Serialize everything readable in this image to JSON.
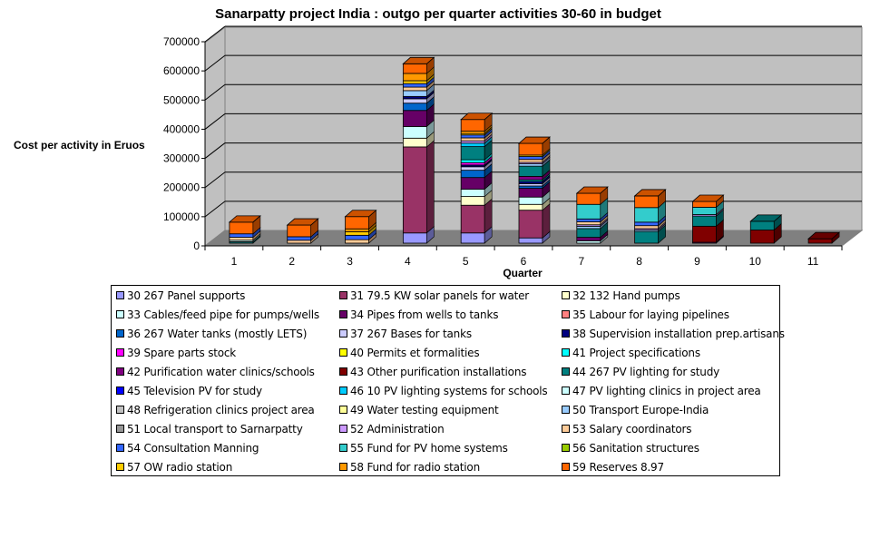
{
  "chart_data": {
    "type": "bar",
    "stacked": true,
    "three_d": true,
    "title": "Sanarpatty project India : outgo per quarter activities 30-60 in budget",
    "xlabel": "Quarter",
    "ylabel": "Cost per activity in Eruos",
    "ylim": [
      0,
      700000
    ],
    "yticks": [
      "0",
      "100000",
      "200000",
      "300000",
      "400000",
      "500000",
      "600000",
      "700000"
    ],
    "ytick_values": [
      0,
      100000,
      200000,
      300000,
      400000,
      500000,
      600000,
      700000
    ],
    "categories": [
      "1",
      "2",
      "3",
      "4",
      "5",
      "6",
      "7",
      "8",
      "9",
      "10",
      "11"
    ],
    "grid": true,
    "legend_position": "bottom",
    "series": [
      {
        "name": "30 267 Panel supports",
        "color": "#9999FF",
        "values": [
          0,
          0,
          0,
          35000,
          35000,
          18000,
          0,
          0,
          0,
          0,
          0
        ]
      },
      {
        "name": "31 79.5 KW solar panels for water",
        "color": "#993366",
        "values": [
          0,
          0,
          0,
          295000,
          95000,
          95000,
          0,
          0,
          0,
          0,
          0
        ]
      },
      {
        "name": "32 132 Hand pumps",
        "color": "#FFFFCC",
        "values": [
          0,
          0,
          0,
          30000,
          30000,
          20000,
          0,
          0,
          0,
          0,
          0
        ]
      },
      {
        "name": "33 Cables/feed pipe for pumps/wells",
        "color": "#CCFFFF",
        "values": [
          0,
          0,
          0,
          40000,
          25000,
          25000,
          8000,
          0,
          0,
          0,
          0
        ]
      },
      {
        "name": "34 Pipes from wells to tanks",
        "color": "#660066",
        "values": [
          0,
          0,
          0,
          55000,
          40000,
          30000,
          12000,
          0,
          0,
          0,
          0
        ]
      },
      {
        "name": "35 Labour for laying pipelines",
        "color": "#FF8080",
        "values": [
          0,
          0,
          0,
          0,
          0,
          0,
          0,
          0,
          0,
          0,
          0
        ]
      },
      {
        "name": "36 267 Water tanks (mostly LETS)",
        "color": "#0066CC",
        "values": [
          0,
          0,
          0,
          25000,
          25000,
          8000,
          0,
          0,
          0,
          0,
          0
        ]
      },
      {
        "name": "37 267 Bases for tanks",
        "color": "#CCCCFF",
        "values": [
          0,
          0,
          0,
          15000,
          12000,
          8000,
          0,
          0,
          0,
          0,
          0
        ]
      },
      {
        "name": "38 Supervision installation prep.artisans",
        "color": "#000080",
        "values": [
          0,
          0,
          0,
          8000,
          6000,
          8000,
          0,
          0,
          0,
          0,
          0
        ]
      },
      {
        "name": "39 Spare parts stock",
        "color": "#FF00FF",
        "values": [
          0,
          0,
          0,
          0,
          8000,
          0,
          0,
          0,
          3000,
          0,
          0
        ]
      },
      {
        "name": "40 Permits et formalities",
        "color": "#FFFF00",
        "values": [
          0,
          0,
          0,
          0,
          0,
          0,
          0,
          0,
          0,
          0,
          0
        ]
      },
      {
        "name": "41 Project specifications",
        "color": "#00FFFF",
        "values": [
          0,
          0,
          0,
          0,
          10000,
          5000,
          0,
          0,
          0,
          0,
          0
        ]
      },
      {
        "name": "42 Purification water clinics/schools",
        "color": "#800080",
        "values": [
          0,
          0,
          0,
          0,
          0,
          12000,
          0,
          0,
          0,
          0,
          0
        ]
      },
      {
        "name": "43 Other purification installations",
        "color": "#800000",
        "values": [
          0,
          0,
          0,
          0,
          0,
          0,
          0,
          0,
          55000,
          45000,
          15000
        ]
      },
      {
        "name": "44 267 PV lighting for study",
        "color": "#008080",
        "values": [
          5000,
          0,
          0,
          0,
          45000,
          35000,
          30000,
          40000,
          35000,
          30000,
          0
        ]
      },
      {
        "name": "45 Television PV for study",
        "color": "#0000FF",
        "values": [
          0,
          0,
          0,
          0,
          0,
          0,
          0,
          0,
          0,
          0,
          0
        ]
      },
      {
        "name": "46 10 PV lighting systems for schools",
        "color": "#00CCFF",
        "values": [
          0,
          0,
          0,
          0,
          12000,
          0,
          0,
          0,
          0,
          0,
          0
        ]
      },
      {
        "name": "47 PV lighting clinics in project area",
        "color": "#CCFFFF",
        "values": [
          5000,
          0,
          0,
          0,
          0,
          0,
          0,
          0,
          0,
          0,
          0
        ]
      },
      {
        "name": "48 Refrigeration clinics project area",
        "color": "#C0C0C0",
        "values": [
          0,
          0,
          0,
          0,
          0,
          0,
          0,
          0,
          0,
          0,
          0
        ]
      },
      {
        "name": "49 Water testing equipment",
        "color": "#FFFF99",
        "values": [
          0,
          0,
          0,
          0,
          0,
          0,
          0,
          0,
          0,
          0,
          0
        ]
      },
      {
        "name": "50 Transport Europe-India",
        "color": "#99CCFF",
        "values": [
          0,
          0,
          0,
          20000,
          0,
          8000,
          8000,
          5000,
          0,
          0,
          0
        ]
      },
      {
        "name": "51 Local transport to Sarnarpatty",
        "color": "#969696",
        "values": [
          0,
          0,
          0,
          0,
          0,
          0,
          0,
          0,
          0,
          0,
          0
        ]
      },
      {
        "name": "52 Administration",
        "color": "#CC99FF",
        "values": [
          0,
          0,
          0,
          0,
          8000,
          5000,
          5000,
          5000,
          5000,
          0,
          0
        ]
      },
      {
        "name": "53 Salary coordinators",
        "color": "#FFCC99",
        "values": [
          10000,
          10000,
          12000,
          12000,
          10000,
          10000,
          10000,
          10000,
          0,
          0,
          0
        ]
      },
      {
        "name": "54 Consultation Manning",
        "color": "#3366FF",
        "values": [
          12000,
          12000,
          15000,
          12000,
          10000,
          10000,
          10000,
          12000,
          0,
          0,
          0
        ]
      },
      {
        "name": "55 Fund for PV home systems",
        "color": "#33CCCC",
        "values": [
          0,
          0,
          0,
          0,
          0,
          0,
          50000,
          50000,
          25000,
          0,
          0
        ]
      },
      {
        "name": "56 Sanitation structures",
        "color": "#99CC00",
        "values": [
          0,
          0,
          0,
          0,
          0,
          0,
          0,
          0,
          0,
          0,
          0
        ]
      },
      {
        "name": "57 OW radio station",
        "color": "#FFCC00",
        "values": [
          0,
          0,
          12000,
          10000,
          5000,
          5000,
          0,
          0,
          0,
          0,
          0
        ]
      },
      {
        "name": "58 Fund for radio station",
        "color": "#FF9900",
        "values": [
          0,
          0,
          10000,
          25000,
          8000,
          0,
          0,
          0,
          0,
          0,
          0
        ]
      },
      {
        "name": "59 Reserves 8.97",
        "color": "#FF6600",
        "values": [
          40000,
          40000,
          42000,
          33000,
          40000,
          40000,
          38000,
          40000,
          20000,
          0,
          0
        ]
      }
    ]
  }
}
